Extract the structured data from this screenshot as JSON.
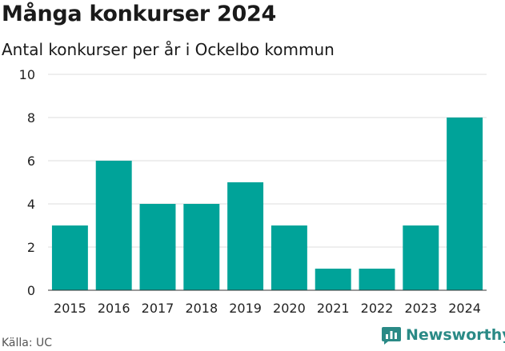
{
  "header": {
    "title": "Många konkurser 2024",
    "subtitle": "Antal konkurser per år i Ockelbo kommun"
  },
  "footer": {
    "source": "Källa: UC",
    "brand": "Newsworthy"
  },
  "colors": {
    "bar": "#00a399",
    "grid": "#dddddd",
    "axis": "#333333",
    "brand": "#2a8a86"
  },
  "icons": {
    "brand_logo": "bar-chart-logo-icon"
  },
  "chart_data": {
    "type": "bar",
    "categories": [
      "2015",
      "2016",
      "2017",
      "2018",
      "2019",
      "2020",
      "2021",
      "2022",
      "2023",
      "2024"
    ],
    "values": [
      3,
      6,
      4,
      4,
      5,
      3,
      1,
      1,
      3,
      8
    ],
    "yticks": [
      0,
      2,
      4,
      6,
      8,
      10
    ],
    "ylim": [
      0,
      10
    ],
    "grid": true,
    "legend": "none"
  }
}
